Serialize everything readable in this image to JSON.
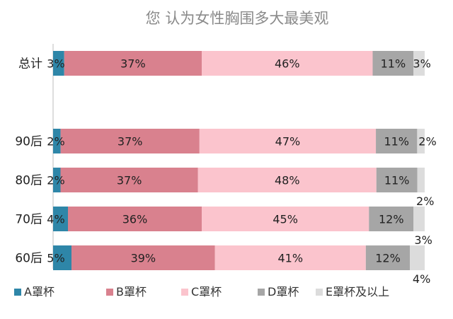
{
  "chart_data": {
    "type": "bar",
    "orientation": "horizontal",
    "stacked": "percent",
    "title": "您 认为女性胸围多大最美观",
    "categories": [
      "总计",
      "90后",
      "80后",
      "70后",
      "60后"
    ],
    "series": [
      {
        "name": "A罩杯",
        "color": "#2e86a8",
        "values": [
          3,
          2,
          2,
          4,
          5
        ],
        "labels": [
          "3%",
          "2%",
          "2%",
          "4%",
          "5%"
        ]
      },
      {
        "name": "B罩杯",
        "color": "#d9818e",
        "values": [
          37,
          37,
          37,
          36,
          39
        ],
        "labels": [
          "37%",
          "37%",
          "37%",
          "36%",
          "39%"
        ]
      },
      {
        "name": "C罩杯",
        "color": "#fbc4cd",
        "values": [
          46,
          47,
          48,
          45,
          41
        ],
        "labels": [
          "46%",
          "47%",
          "48%",
          "45%",
          "41%"
        ]
      },
      {
        "name": "D罩杯",
        "color": "#a6a6a6",
        "values": [
          11,
          11,
          11,
          12,
          12
        ],
        "labels": [
          "11%",
          "11%",
          "11%",
          "12%",
          "12%"
        ]
      },
      {
        "name": "E罩杯及以上",
        "color": "#dcdcdc",
        "values": [
          3,
          2,
          2,
          3,
          4
        ],
        "labels": [
          "3%",
          "2%",
          "2%",
          "3%",
          "4%"
        ]
      }
    ],
    "legend": "bottom",
    "grid": false
  }
}
